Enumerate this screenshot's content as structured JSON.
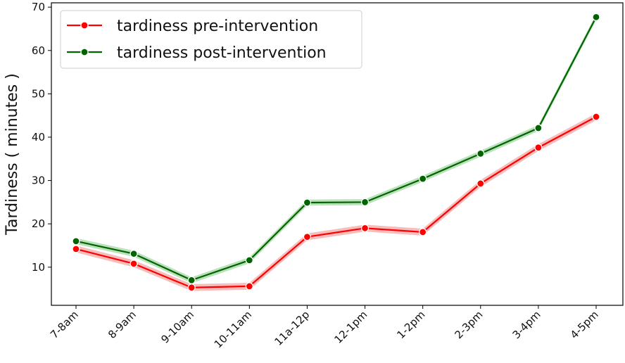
{
  "chart_data": {
    "type": "line",
    "categories": [
      "7-8am",
      "8-9am",
      "9-10am",
      "10-11am",
      "11a-12p",
      "12-1pm",
      "1-2pm",
      "2-3pm",
      "3-4pm",
      "4-5pm"
    ],
    "series": [
      {
        "name": "tardiness pre-intervention",
        "color": "#ff0000",
        "band_color": "#f4a0a0",
        "values": [
          14.2,
          10.8,
          5.3,
          5.6,
          17.0,
          19.0,
          18.1,
          29.3,
          37.6,
          44.7
        ],
        "band": 0.8
      },
      {
        "name": "tardiness post-intervention",
        "color": "#006400",
        "band_color": "#9cd49c",
        "values": [
          16.0,
          13.1,
          7.0,
          11.6,
          24.9,
          25.0,
          30.4,
          36.2,
          42.1,
          67.7
        ],
        "band": 0.7
      }
    ],
    "title": "",
    "xlabel": "",
    "ylabel": "Tardiness ( minutes )",
    "ylim": [
      1.2,
      71.0
    ],
    "yticks": [
      10,
      20,
      30,
      40,
      50,
      60,
      70
    ],
    "legend_position": "top-left",
    "grid": false
  }
}
